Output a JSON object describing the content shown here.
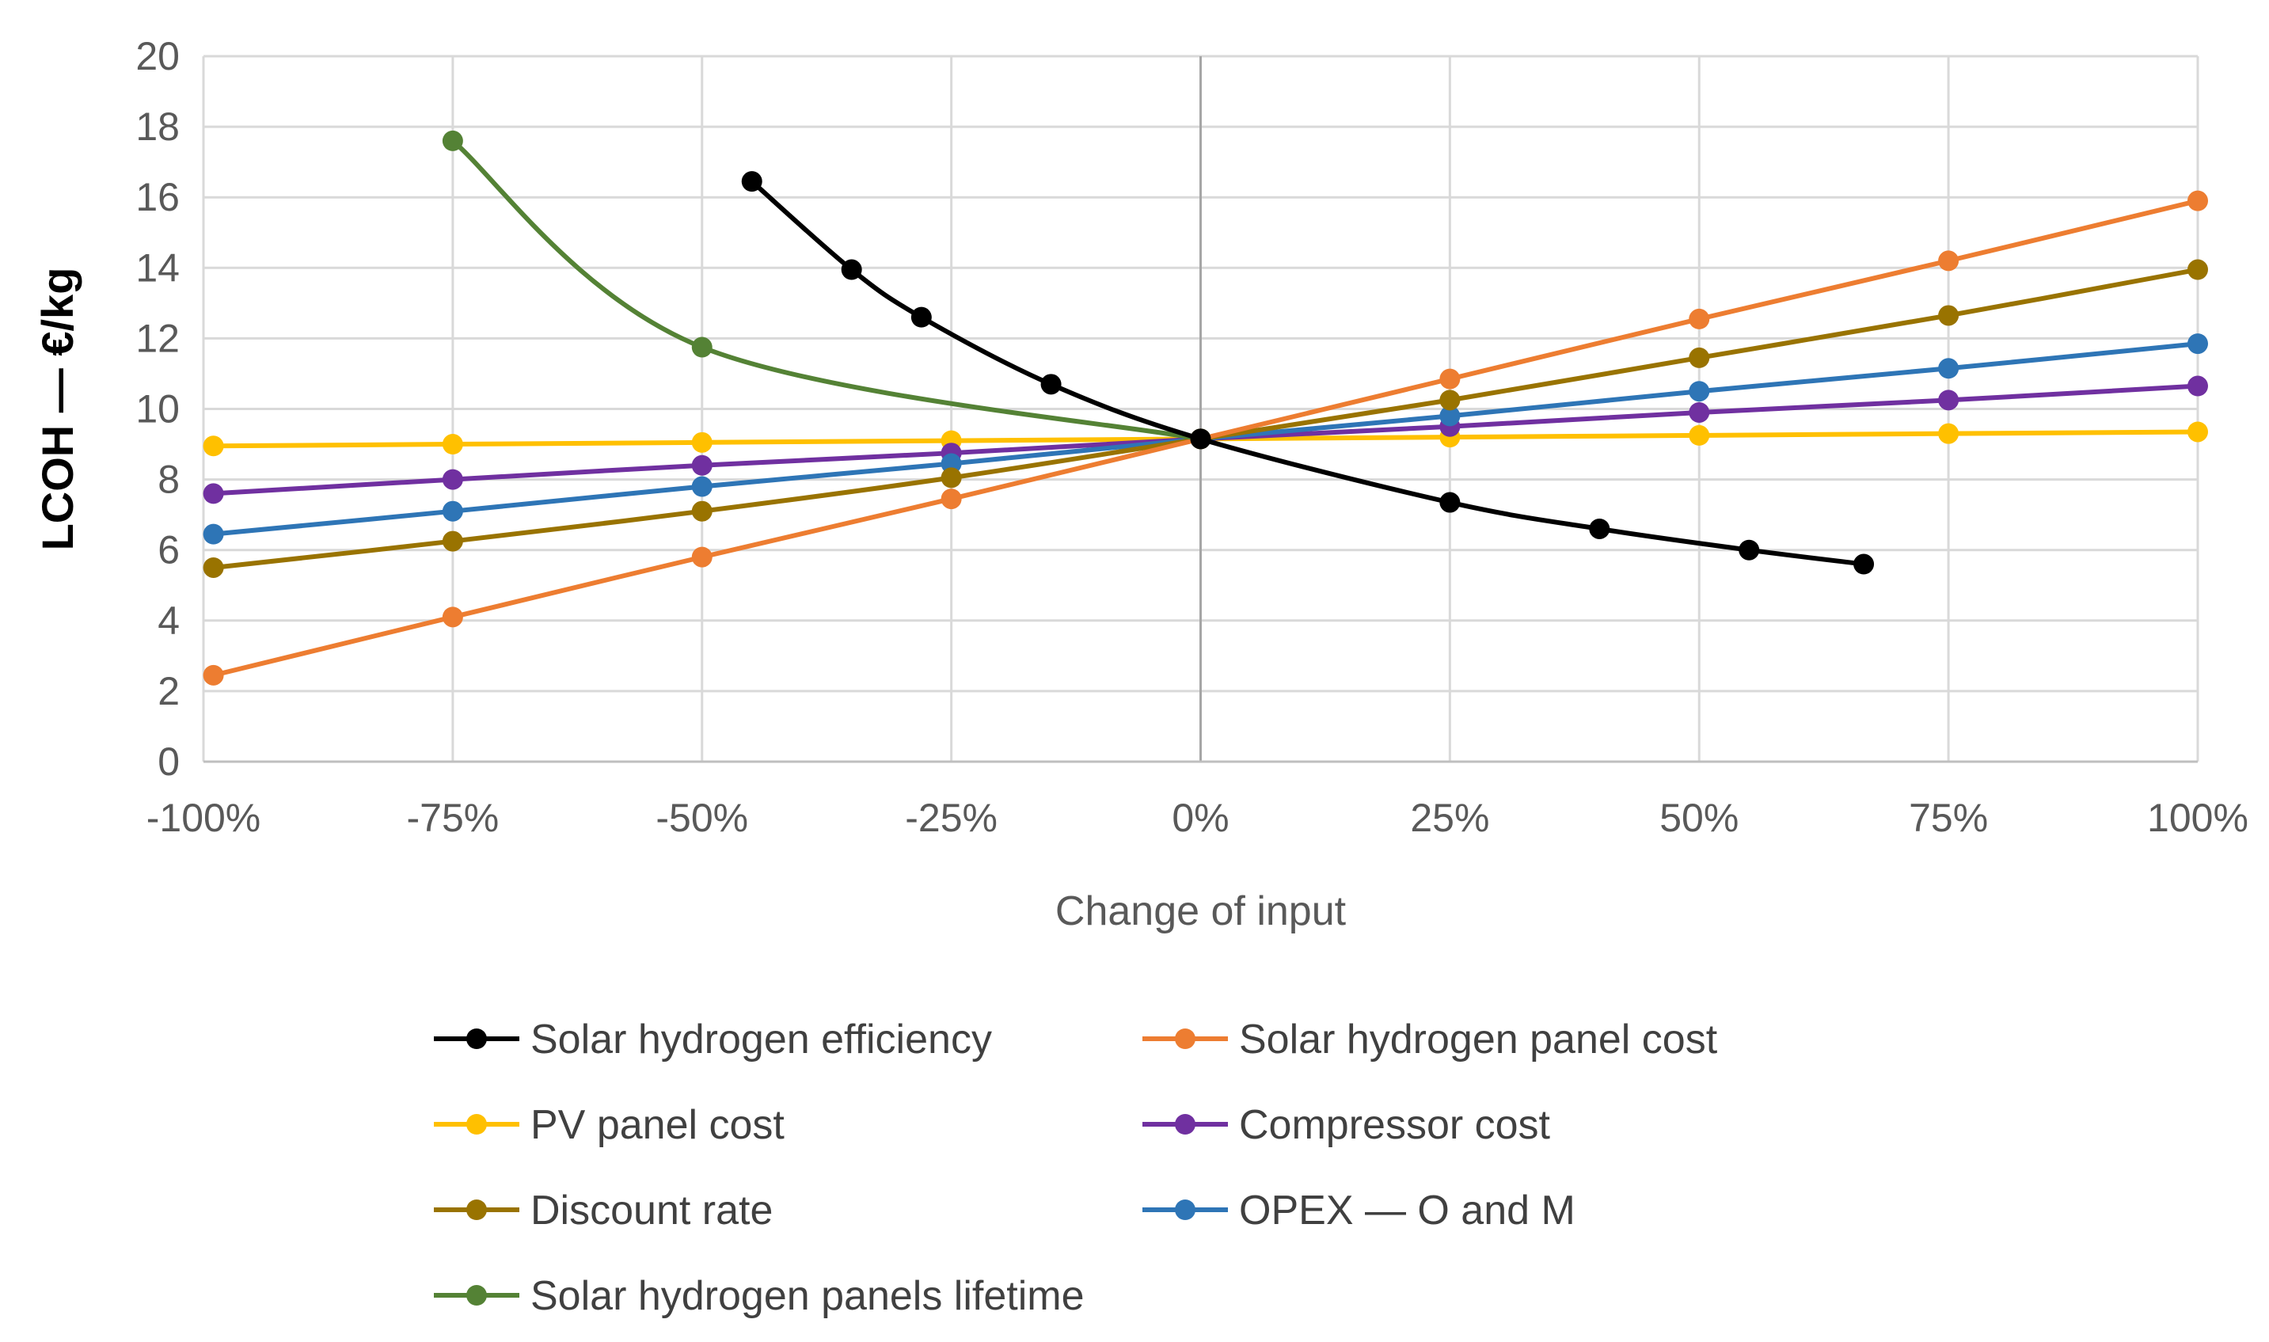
{
  "chart_data": {
    "type": "line",
    "title": "",
    "xlabel": "Change of input",
    "ylabel": "LCOH — €/kg",
    "xlim": [
      -100,
      100
    ],
    "ylim": [
      0,
      20
    ],
    "x_ticks": [
      -100,
      -75,
      -50,
      -25,
      0,
      25,
      50,
      75,
      100
    ],
    "x_tick_labels": [
      "-100%",
      "-75%",
      "-50%",
      "-25%",
      "0%",
      "25%",
      "50%",
      "75%",
      "100%"
    ],
    "y_ticks": [
      0,
      2,
      4,
      6,
      8,
      10,
      12,
      14,
      16,
      18,
      20
    ],
    "y_tick_labels": [
      "0",
      "2",
      "4",
      "6",
      "8",
      "10",
      "12",
      "14",
      "16",
      "18",
      "20"
    ],
    "grid": true,
    "legend_position": "bottom",
    "series": [
      {
        "name": "Solar hydrogen efficiency",
        "color": "#000000",
        "x": [
          -45,
          -35,
          -28,
          -15,
          0,
          25,
          40,
          55,
          66.5
        ],
        "y": [
          16.45,
          13.95,
          12.6,
          10.7,
          9.15,
          7.35,
          6.6,
          6.0,
          5.6
        ]
      },
      {
        "name": "Solar hydrogen panel cost",
        "color": "#ED7D31",
        "x": [
          -99,
          -75,
          -50,
          -25,
          0,
          25,
          50,
          75,
          100
        ],
        "y": [
          2.45,
          4.1,
          5.8,
          7.45,
          9.15,
          10.85,
          12.55,
          14.2,
          15.9
        ]
      },
      {
        "name": "PV panel cost",
        "color": "#FFC000",
        "x": [
          -99,
          -75,
          -50,
          -25,
          0,
          25,
          50,
          75,
          100
        ],
        "y": [
          8.95,
          9.0,
          9.05,
          9.1,
          9.15,
          9.2,
          9.25,
          9.3,
          9.35
        ]
      },
      {
        "name": "Compressor cost",
        "color": "#7030A0",
        "x": [
          -99,
          -75,
          -50,
          -25,
          0,
          25,
          50,
          75,
          100
        ],
        "y": [
          7.6,
          8.0,
          8.4,
          8.75,
          9.15,
          9.5,
          9.9,
          10.25,
          10.65
        ]
      },
      {
        "name": "Discount rate",
        "color": "#997300",
        "x": [
          -99,
          -75,
          -50,
          -25,
          0,
          25,
          50,
          75,
          100
        ],
        "y": [
          5.5,
          6.25,
          7.1,
          8.05,
          9.15,
          10.25,
          11.45,
          12.65,
          13.95
        ]
      },
      {
        "name": "OPEX — O and M",
        "color": "#2E75B6",
        "x": [
          -99,
          -75,
          -50,
          -25,
          0,
          25,
          50,
          75,
          100
        ],
        "y": [
          6.45,
          7.1,
          7.8,
          8.45,
          9.15,
          9.8,
          10.5,
          11.15,
          11.85
        ]
      },
      {
        "name": "Solar hydrogen panels lifetime",
        "color": "#548235",
        "x": [
          -75,
          -50,
          0
        ],
        "y": [
          17.6,
          11.75,
          9.15
        ]
      }
    ]
  }
}
